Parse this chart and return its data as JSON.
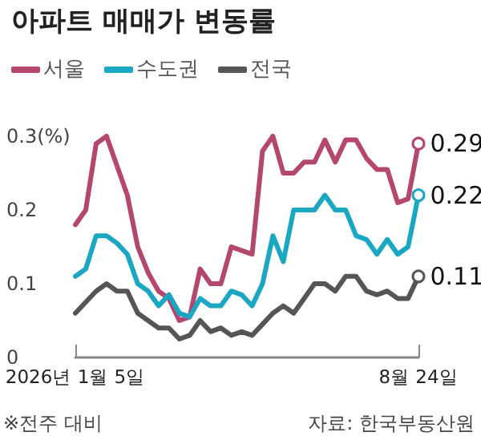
{
  "chart_data": {
    "type": "line",
    "title": "아파트 매매가 변동률",
    "categories": [
      "2026년 1월 5일",
      null,
      null,
      null,
      null,
      null,
      null,
      null,
      null,
      null,
      null,
      null,
      null,
      null,
      null,
      null,
      null,
      null,
      null,
      null,
      null,
      null,
      null,
      null,
      null,
      null,
      null,
      null,
      null,
      null,
      null,
      null,
      null,
      "8월 24일"
    ],
    "series": [
      {
        "name": "서울",
        "color": "#b5476e",
        "values": [
          0.18,
          0.2,
          0.29,
          0.3,
          0.26,
          0.22,
          0.15,
          0.115,
          0.09,
          0.08,
          0.05,
          0.055,
          0.12,
          0.1,
          0.1,
          0.15,
          0.145,
          0.14,
          0.28,
          0.3,
          0.25,
          0.25,
          0.265,
          0.265,
          0.295,
          0.265,
          0.295,
          0.295,
          0.27,
          0.255,
          0.255,
          0.21,
          0.215,
          0.29
        ],
        "value_labels": [
          null,
          null,
          null,
          null,
          null,
          null,
          null,
          null,
          null,
          null,
          null,
          null,
          null,
          null,
          null,
          null,
          null,
          null,
          null,
          null,
          null,
          null,
          null,
          null,
          null,
          null,
          null,
          null,
          null,
          null,
          null,
          null,
          null,
          "0.29"
        ]
      },
      {
        "name": "수도권",
        "color": "#1aa7c4",
        "values": [
          0.11,
          0.12,
          0.165,
          0.165,
          0.155,
          0.14,
          0.1,
          0.09,
          0.07,
          0.085,
          0.06,
          0.055,
          0.08,
          0.07,
          0.07,
          0.09,
          0.085,
          0.07,
          0.1,
          0.165,
          0.13,
          0.2,
          0.2,
          0.2,
          0.22,
          0.2,
          0.2,
          0.165,
          0.16,
          0.14,
          0.16,
          0.14,
          0.15,
          0.22
        ],
        "value_labels": [
          null,
          null,
          null,
          null,
          null,
          null,
          null,
          null,
          null,
          null,
          null,
          null,
          null,
          null,
          null,
          null,
          null,
          null,
          null,
          null,
          null,
          null,
          null,
          null,
          null,
          null,
          null,
          null,
          null,
          null,
          null,
          null,
          null,
          "0.22"
        ]
      },
      {
        "name": "전국",
        "color": "#555555",
        "values": [
          0.06,
          0.075,
          0.09,
          0.1,
          0.09,
          0.09,
          0.06,
          0.05,
          0.04,
          0.04,
          0.025,
          0.03,
          0.05,
          0.035,
          0.04,
          0.03,
          0.035,
          0.03,
          0.045,
          0.06,
          0.07,
          0.06,
          0.08,
          0.1,
          0.1,
          0.09,
          0.11,
          0.11,
          0.09,
          0.085,
          0.09,
          0.08,
          0.08,
          0.11
        ],
        "value_labels": [
          null,
          null,
          null,
          null,
          null,
          null,
          null,
          null,
          null,
          null,
          null,
          null,
          null,
          null,
          null,
          null,
          null,
          null,
          null,
          null,
          null,
          null,
          null,
          null,
          null,
          null,
          null,
          null,
          null,
          null,
          null,
          null,
          null,
          "0.11"
        ]
      }
    ],
    "ylim": [
      0,
      0.3
    ],
    "yticks": [
      0,
      0.1,
      0.2,
      {
        "value": 0.3,
        "label": "0.3(%)"
      }
    ],
    "grid": false,
    "legend": "top left",
    "marker": "none",
    "line_style": "solid",
    "annotations": [
      "※전주 대비",
      "자료: 한국부동산원"
    ]
  }
}
